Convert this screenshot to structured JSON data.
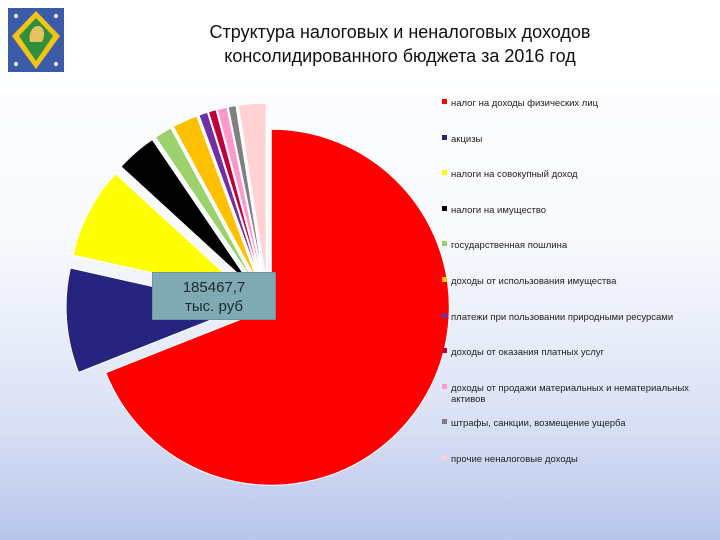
{
  "header": {
    "title_line1": "Структура налоговых и неналоговых доходов",
    "title_line2": "консолидированного бюджета за 2016 год"
  },
  "logo": {
    "icon": "regional-coat-of-arms-icon",
    "colors": [
      "#3b5ba8",
      "#f2c417",
      "#2f8f3f"
    ]
  },
  "callout": {
    "value": "185467,7",
    "unit": "тыс. руб"
  },
  "chart_data": {
    "type": "pie",
    "title": "Структура налоговых и неналоговых доходов консолидированного бюджета за 2016 год",
    "exploded": true,
    "legend_position": "right",
    "slices": [
      {
        "label": "налог на доходы физических лиц",
        "value": 69.0,
        "color": "#ff0000"
      },
      {
        "label": "акцизы",
        "value": 9.5,
        "color": "#26247e"
      },
      {
        "label": "налоги на совокупный доход",
        "value": 8.3,
        "color": "#ffff00"
      },
      {
        "label": "налоги на имущество",
        "value": 3.7,
        "color": "#000000"
      },
      {
        "label": "государственная пошлина",
        "value": 1.6,
        "color": "#9bd26c"
      },
      {
        "label": "доходы от использования имущества",
        "value": 2.3,
        "color": "#ffc000"
      },
      {
        "label": "платежи при пользовании природными ресурсами",
        "value": 0.8,
        "color": "#7030a0"
      },
      {
        "label": "доходы от оказания платных услуг",
        "value": 0.7,
        "color": "#c0003a"
      },
      {
        "label": "доходы от продажи материальных и нематериальных активов",
        "value": 0.9,
        "color": "#ff99cc"
      },
      {
        "label": "штрафы, санкции, возмещение ущерба",
        "value": 0.7,
        "color": "#808080"
      },
      {
        "label": "прочие неналоговые доходы",
        "value": 2.5,
        "color": "#ffd3d3"
      }
    ]
  }
}
